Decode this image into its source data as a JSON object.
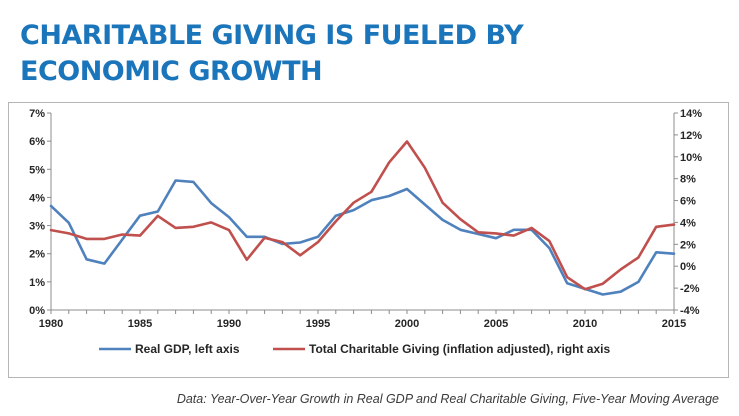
{
  "title": "CHARITABLE GIVING IS FUELED BY ECONOMIC GROWTH",
  "caption": "Data: Year-Over-Year Growth in Real GDP and Real Charitable Giving, Five-Year Moving Average",
  "colors": {
    "title": "#1b75bb",
    "gdp": "#4f81bd",
    "giving": "#c0504d"
  },
  "chart_data": {
    "type": "line",
    "x": [
      1980,
      1981,
      1982,
      1983,
      1984,
      1985,
      1986,
      1987,
      1988,
      1989,
      1990,
      1991,
      1992,
      1993,
      1994,
      1995,
      1996,
      1997,
      1998,
      1999,
      2000,
      2001,
      2002,
      2003,
      2004,
      2005,
      2006,
      2007,
      2008,
      2009,
      2010,
      2011,
      2012,
      2013,
      2014,
      2015
    ],
    "x_ticks": [
      "1980",
      "1985",
      "1990",
      "1995",
      "2000",
      "2005",
      "2010",
      "2015"
    ],
    "x_tick_values": [
      1980,
      1985,
      1990,
      1995,
      2000,
      2005,
      2010,
      2015
    ],
    "xlim": [
      1980,
      2015
    ],
    "y_left": {
      "ticks": [
        "0%",
        "1%",
        "2%",
        "3%",
        "4%",
        "5%",
        "6%",
        "7%"
      ],
      "tick_values": [
        0,
        1,
        2,
        3,
        4,
        5,
        6,
        7
      ],
      "ylim": [
        0,
        7
      ]
    },
    "y_right": {
      "ticks": [
        "-4%",
        "-2%",
        "0%",
        "2%",
        "4%",
        "6%",
        "8%",
        "10%",
        "12%",
        "14%"
      ],
      "tick_values": [
        -4,
        -2,
        0,
        2,
        4,
        6,
        8,
        10,
        12,
        14
      ],
      "ylim": [
        -4,
        14
      ]
    },
    "grid": false,
    "legend_position": "bottom",
    "series": [
      {
        "name": "Real GDP, left axis",
        "axis": "left",
        "values": [
          3.7,
          3.1,
          1.8,
          1.65,
          2.5,
          3.35,
          3.5,
          4.6,
          4.55,
          3.8,
          3.3,
          2.6,
          2.6,
          2.35,
          2.4,
          2.6,
          3.35,
          3.55,
          3.9,
          4.05,
          4.3,
          3.75,
          3.2,
          2.85,
          2.7,
          2.55,
          2.85,
          2.85,
          2.2,
          0.95,
          0.75,
          0.55,
          0.65,
          1.0,
          2.05,
          2.0
        ]
      },
      {
        "name": "Total Charitable Giving (inflation adjusted), right axis",
        "axis": "right",
        "values": [
          3.3,
          3.0,
          2.5,
          2.5,
          2.9,
          2.8,
          4.6,
          3.5,
          3.6,
          4.0,
          3.3,
          0.6,
          2.6,
          2.2,
          1.0,
          2.2,
          4.1,
          5.8,
          6.8,
          9.5,
          11.4,
          9.0,
          5.8,
          4.3,
          3.1,
          3.0,
          2.8,
          3.5,
          2.3,
          -1.0,
          -2.1,
          -1.6,
          -0.3,
          0.8,
          3.6,
          3.8
        ]
      }
    ]
  }
}
